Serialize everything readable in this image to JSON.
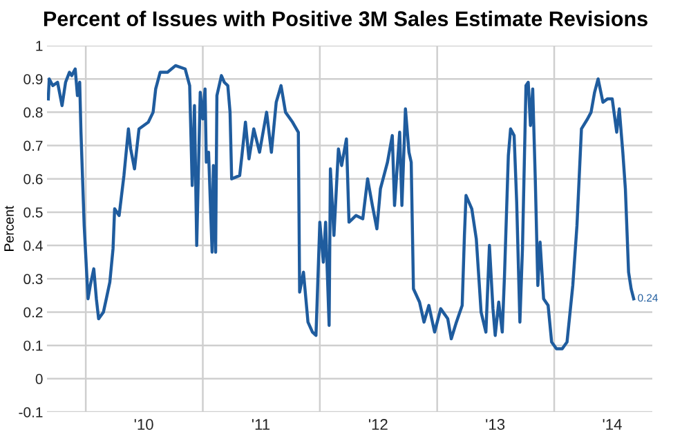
{
  "chart_data": {
    "type": "line",
    "title": "Percent of Issues with Positive 3M Sales Estimate Revisions",
    "ylabel": "Percent",
    "x": [
      "2009-09-06",
      "2009-09-09",
      "2009-09-20",
      "2009-10-05",
      "2009-10-19",
      "2009-10-30",
      "2009-11-11",
      "2009-11-18",
      "2009-11-29",
      "2009-12-06",
      "2009-12-13",
      "2009-12-17",
      "2009-12-27",
      "2010-01-08",
      "2010-01-15",
      "2010-01-26",
      "2010-02-03",
      "2010-02-10",
      "2010-02-25",
      "2010-03-06",
      "2010-03-17",
      "2010-03-27",
      "2010-04-01",
      "2010-04-15",
      "2010-04-30",
      "2010-05-14",
      "2010-05-21",
      "2010-06-02",
      "2010-06-16",
      "2010-07-15",
      "2010-07-30",
      "2010-08-07",
      "2010-08-21",
      "2010-09-13",
      "2010-10-08",
      "2010-11-07",
      "2010-11-21",
      "2010-11-29",
      "2010-12-06",
      "2010-12-13",
      "2010-12-24",
      "2011-01-01",
      "2011-01-08",
      "2011-01-12",
      "2011-01-19",
      "2011-01-30",
      "2011-02-03",
      "2011-02-10",
      "2011-02-14",
      "2011-02-28",
      "2011-03-09",
      "2011-03-20",
      "2011-03-27",
      "2011-04-01",
      "2011-04-26",
      "2011-05-03",
      "2011-05-14",
      "2011-05-25",
      "2011-06-09",
      "2011-06-27",
      "2011-07-19",
      "2011-08-03",
      "2011-08-18",
      "2011-09-02",
      "2011-09-16",
      "2011-10-08",
      "2011-10-26",
      "2011-10-30",
      "2011-11-11",
      "2011-11-25",
      "2011-12-09",
      "2011-12-20",
      "2012-01-01",
      "2012-01-12",
      "2012-01-19",
      "2012-01-30",
      "2012-02-03",
      "2012-02-14",
      "2012-02-28",
      "2012-03-09",
      "2012-03-24",
      "2012-04-01",
      "2012-04-23",
      "2012-05-14",
      "2012-05-29",
      "2012-06-13",
      "2012-06-27",
      "2012-07-08",
      "2012-07-30",
      "2012-08-14",
      "2012-08-21",
      "2012-09-06",
      "2012-09-13",
      "2012-09-24",
      "2012-10-05",
      "2012-10-12",
      "2012-10-19",
      "2012-11-07",
      "2012-11-21",
      "2012-12-06",
      "2012-12-24",
      "2013-01-12",
      "2013-02-03",
      "2013-02-14",
      "2013-03-02",
      "2013-03-20",
      "2013-03-27",
      "2013-04-01",
      "2013-04-19",
      "2013-05-03",
      "2013-05-18",
      "2013-06-02",
      "2013-06-13",
      "2013-06-24",
      "2013-07-01",
      "2013-07-12",
      "2013-07-23",
      "2013-07-30",
      "2013-08-11",
      "2013-08-18",
      "2013-08-29",
      "2013-09-06",
      "2013-09-16",
      "2013-09-24",
      "2013-10-05",
      "2013-10-12",
      "2013-10-19",
      "2013-10-26",
      "2013-11-03",
      "2013-11-11",
      "2013-11-18",
      "2013-11-29",
      "2013-12-13",
      "2013-12-24",
      "2014-01-08",
      "2014-01-26",
      "2014-02-10",
      "2014-02-28",
      "2014-03-13",
      "2014-03-27",
      "2014-04-15",
      "2014-04-26",
      "2014-05-07",
      "2014-05-18",
      "2014-06-02",
      "2014-06-16",
      "2014-07-01",
      "2014-07-15",
      "2014-07-23",
      "2014-08-03",
      "2014-08-11",
      "2014-08-21",
      "2014-08-29",
      "2014-09-06"
    ],
    "series": [
      {
        "color": "#1f5c9e",
        "values": [
          0.84,
          0.9,
          0.88,
          0.89,
          0.82,
          0.89,
          0.92,
          0.91,
          0.93,
          0.85,
          0.89,
          0.74,
          0.46,
          0.24,
          0.28,
          0.33,
          0.24,
          0.18,
          0.2,
          0.24,
          0.29,
          0.39,
          0.51,
          0.49,
          0.61,
          0.75,
          0.69,
          0.63,
          0.75,
          0.77,
          0.8,
          0.87,
          0.92,
          0.92,
          0.94,
          0.93,
          0.88,
          0.58,
          0.82,
          0.4,
          0.86,
          0.78,
          0.87,
          0.65,
          0.68,
          0.38,
          0.64,
          0.38,
          0.85,
          0.91,
          0.89,
          0.88,
          0.8,
          0.6,
          0.61,
          0.67,
          0.77,
          0.66,
          0.75,
          0.68,
          0.8,
          0.68,
          0.83,
          0.88,
          0.8,
          0.77,
          0.74,
          0.26,
          0.32,
          0.17,
          0.14,
          0.13,
          0.47,
          0.35,
          0.47,
          0.16,
          0.63,
          0.43,
          0.69,
          0.64,
          0.72,
          0.47,
          0.49,
          0.48,
          0.6,
          0.52,
          0.45,
          0.57,
          0.65,
          0.73,
          0.52,
          0.74,
          0.52,
          0.81,
          0.68,
          0.65,
          0.27,
          0.23,
          0.17,
          0.22,
          0.14,
          0.21,
          0.18,
          0.12,
          0.17,
          0.22,
          0.43,
          0.55,
          0.51,
          0.42,
          0.2,
          0.14,
          0.4,
          0.21,
          0.13,
          0.23,
          0.14,
          0.31,
          0.67,
          0.75,
          0.73,
          0.53,
          0.17,
          0.39,
          0.88,
          0.89,
          0.76,
          0.87,
          0.6,
          0.28,
          0.41,
          0.24,
          0.22,
          0.11,
          0.09,
          0.09,
          0.11,
          0.28,
          0.46,
          0.75,
          0.78,
          0.8,
          0.86,
          0.9,
          0.83,
          0.84,
          0.84,
          0.74,
          0.81,
          0.68,
          0.57,
          0.32,
          0.27,
          0.24
        ]
      }
    ],
    "annotations": [
      {
        "text": "0.24",
        "x": "2014-09-06",
        "y": 0.24
      }
    ],
    "xlim": [
      "2009-09-02",
      "2014-11-03"
    ],
    "xticks": [
      {
        "value": "2010-01-01",
        "label": null
      },
      {
        "value": "2010-07-01",
        "label": "'10"
      },
      {
        "value": "2011-01-01",
        "label": null
      },
      {
        "value": "2011-07-01",
        "label": "'11"
      },
      {
        "value": "2012-01-01",
        "label": null
      },
      {
        "value": "2012-07-01",
        "label": "'12"
      },
      {
        "value": "2013-01-01",
        "label": null
      },
      {
        "value": "2013-07-01",
        "label": "'13"
      },
      {
        "value": "2014-01-01",
        "label": null
      },
      {
        "value": "2014-07-01",
        "label": "'14"
      }
    ],
    "ylim": [
      -0.1,
      1
    ],
    "yticks": [
      -0.1,
      0,
      0.1,
      0.2,
      0.3,
      0.4,
      0.5,
      0.6,
      0.7,
      0.8,
      0.9,
      1
    ],
    "grid": true,
    "line_style": "solid",
    "marker": "none"
  }
}
